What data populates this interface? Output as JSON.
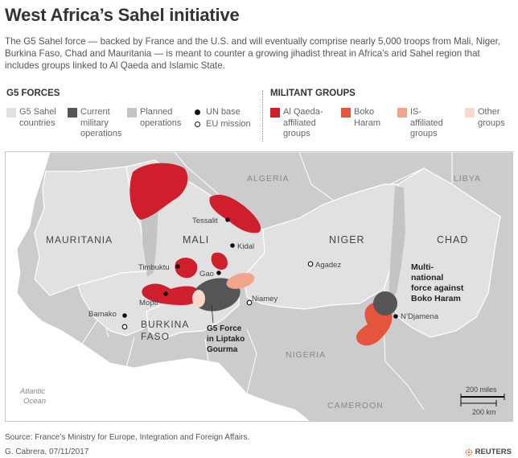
{
  "header": {
    "title": "West Africa’s Sahel initiative",
    "intro": "The G5 Sahel force — backed by France and the U.S. and will eventually comprise nearly 5,000 troops from Mali, Niger, Burkina Faso, Chad and Mauritania — is meant to counter a growing jihadist threat in Africa’s arid Sahel region that includes groups linked to Al Qaeda and Islamic State."
  },
  "legend": {
    "g5_heading": "G5 FORCES",
    "militant_heading": "MILITANT GROUPS",
    "g5_items": [
      {
        "label_lines": [
          "G5 Sahel",
          "countries"
        ],
        "color": "#e1e1e1"
      },
      {
        "label_lines": [
          "Current",
          "military",
          "operations"
        ],
        "color": "#555555"
      },
      {
        "label_lines": [
          "Planned",
          "operations"
        ],
        "color": "#c4c4c4"
      },
      {
        "label_lines": [
          "UN base"
        ],
        "icon": "filled-dot-icon"
      },
      {
        "label_lines": [
          "EU mission"
        ],
        "icon": "hollow-dot-icon"
      }
    ],
    "militant_items": [
      {
        "label_lines": [
          "Al Qaeda-",
          "affiliated",
          "groups"
        ],
        "color": "#cf1f2c"
      },
      {
        "label_lines": [
          "Boko",
          "Haram"
        ],
        "color": "#e5553e"
      },
      {
        "label_lines": [
          "IS-",
          "affiliated",
          "groups"
        ],
        "color": "#f3a48c"
      },
      {
        "label_lines": [
          "Other",
          "groups"
        ],
        "color": "#f8d8cc"
      }
    ]
  },
  "map": {
    "countries_caps": {
      "algeria": "ALGERIA",
      "libya": "LIBYA",
      "mauritania": "MAURITANIA",
      "mali": "MALI",
      "niger": "NIGER",
      "chad": "CHAD",
      "burkina_line1": "BURKINA",
      "burkina_line2": "FASO",
      "nigeria": "NIGERIA",
      "cameroon": "CAMEROON"
    },
    "cities": {
      "tessalit": "Tessalit",
      "kidal": "Kidal",
      "timbuktu": "Timbuktu",
      "gao": "Gao",
      "mopti": "Mopti",
      "agadez": "Agadez",
      "niamey": "Niamey",
      "bamako": "Bamako",
      "ndjamena": "N’Djamena"
    },
    "operations": {
      "liptako_lines": [
        "G5 Force",
        "in Liptako",
        "Gourma"
      ],
      "mnjtf_lines": [
        "Multi-",
        "national",
        "force against",
        "Boko Haram"
      ]
    },
    "ocean_lines": [
      "Atlantic",
      "Ocean"
    ],
    "scale": {
      "miles": "200 miles",
      "km": "200 km"
    },
    "colors": {
      "sea": "#ffffff",
      "land_other": "#cccccc",
      "g5": "#e1e1e1",
      "current_ops": "#555555",
      "planned_ops": "#c4c4c4",
      "al_qaeda": "#cf1f2c",
      "boko_haram": "#e5553e",
      "is_groups": "#f3a48c",
      "other_groups": "#f8d8cc"
    }
  },
  "footer": {
    "source": "Source: France’s Ministry for Europe, Integration and Foreign Affairs.",
    "credit": "G. Cabrera, 07/11/2017",
    "brand": "REUTERS"
  }
}
